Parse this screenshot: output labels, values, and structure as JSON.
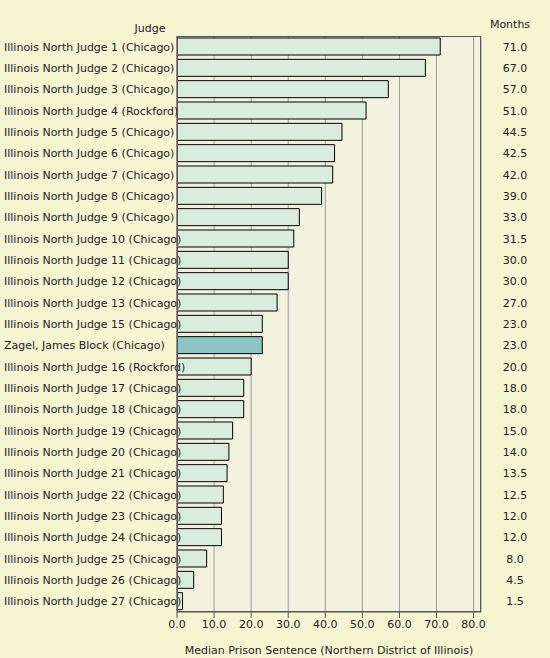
{
  "chart_data": {
    "type": "bar",
    "orientation": "horizontal",
    "ylabel": "Judge",
    "value_labels_title": "Months",
    "xlabel": "Median Prison Sentence (Northern District of Illinois)",
    "categories": [
      "Illinois North Judge 1 (Chicago)",
      "Illinois North Judge 2 (Chicago)",
      "Illinois North Judge 3 (Chicago)",
      "Illinois North Judge 4 (Rockford)",
      "Illinois North Judge 5 (Chicago)",
      "Illinois North Judge 6 (Chicago)",
      "Illinois North Judge 7 (Chicago)",
      "Illinois North Judge 8 (Chicago)",
      "Illinois North Judge 9 (Chicago)",
      "Illinois North Judge 10 (Chicago)",
      "Illinois North Judge 11 (Chicago)",
      "Illinois North Judge 12 (Chicago)",
      "Illinois North Judge 13 (Chicago)",
      "Illinois North Judge 15 (Chicago)",
      "Zagel, James Block (Chicago)",
      "Illinois North Judge 16 (Rockford)",
      "Illinois North Judge 17 (Chicago)",
      "Illinois North Judge 18 (Chicago)",
      "Illinois North Judge 19 (Chicago)",
      "Illinois North Judge 20 (Chicago)",
      "Illinois North Judge 21 (Chicago)",
      "Illinois North Judge 22 (Chicago)",
      "Illinois North Judge 23 (Chicago)",
      "Illinois North Judge 24 (Chicago)",
      "Illinois North Judge 25 (Chicago)",
      "Illinois North Judge 26 (Chicago)",
      "Illinois North Judge 27 (Chicago)"
    ],
    "values": [
      71,
      67,
      57,
      51,
      44.5,
      42.5,
      42,
      39,
      33,
      31.5,
      30,
      30,
      27,
      23,
      23,
      20,
      18,
      18,
      15,
      14,
      13.5,
      12.5,
      12,
      12,
      8,
      4.5,
      1.5
    ],
    "value_labels": [
      "71.0",
      "67.0",
      "57.0",
      "51.0",
      "44.5",
      "42.5",
      "42.0",
      "39.0",
      "33.0",
      "31.5",
      "30.0",
      "30.0",
      "27.0",
      "23.0",
      "23.0",
      "20.0",
      "18.0",
      "18.0",
      "15.0",
      "14.0",
      "13.5",
      "12.5",
      "12.0",
      "12.0",
      "8.0",
      "4.5",
      "1.5"
    ],
    "data_labels": true,
    "colors": [
      "#daecdc",
      "#daecdc",
      "#daecdc",
      "#daecdc",
      "#daecdc",
      "#daecdc",
      "#daecdc",
      "#daecdc",
      "#daecdc",
      "#daecdc",
      "#daecdc",
      "#daecdc",
      "#daecdc",
      "#daecdc",
      "#8cc6c2",
      "#daecdc",
      "#daecdc",
      "#daecdc",
      "#daecdc",
      "#daecdc",
      "#daecdc",
      "#daecdc",
      "#daecdc",
      "#daecdc",
      "#daecdc",
      "#daecdc",
      "#daecdc"
    ],
    "xlim": [
      0,
      82
    ],
    "xticks": [
      {
        "value": 0,
        "label": "0.0"
      },
      {
        "value": 10,
        "label": "10.0"
      },
      {
        "value": 20,
        "label": "20.0"
      },
      {
        "value": 30,
        "label": "30.0"
      },
      {
        "value": 40,
        "label": "40.0"
      },
      {
        "value": 50,
        "label": "50.0"
      },
      {
        "value": 60,
        "label": "60.0"
      },
      {
        "value": 70,
        "label": "70.0"
      },
      {
        "value": 80,
        "label": "80.0"
      }
    ],
    "grid": true
  }
}
